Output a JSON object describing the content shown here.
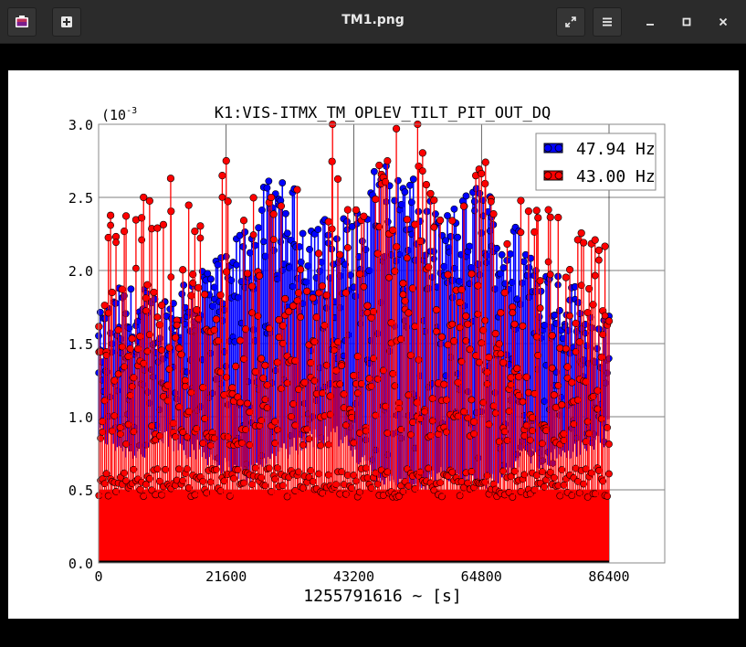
{
  "window": {
    "title": "TM1.png"
  },
  "toolbar": {
    "app_icon": "image-viewer-icon",
    "new_icon": "plus-icon",
    "fullscreen_icon": "fullscreen-icon",
    "menu_icon": "hamburger-menu-icon"
  },
  "window_controls": {
    "minimize_icon": "minimize-icon",
    "maximize_icon": "maximize-icon",
    "close_icon": "close-icon"
  },
  "chart_data": {
    "type": "line",
    "title": "K1:VIS-ITMX_TM_OPLEV_TILT_PIT_OUT_DQ",
    "xlabel": "1255791616 ~ [s]",
    "ylabel": "",
    "y_exponent_label": "(10",
    "y_exponent_power": "-3",
    "xlim": [
      0,
      86400
    ],
    "ylim": [
      0,
      3.0
    ],
    "x_ticks": [
      "0",
      "21600",
      "43200",
      "64800",
      "86400"
    ],
    "y_ticks": [
      "0.0",
      "0.5",
      "1.0",
      "1.5",
      "2.0",
      "2.5",
      "3.0"
    ],
    "grid": true,
    "legend_position": "top-right",
    "colors": {
      "series_1": "#0000ff",
      "series_2": "#ff0000"
    },
    "series": [
      {
        "name": "47.94 Hz",
        "x": [
          0,
          3600,
          7200,
          10800,
          14400,
          18000,
          21600,
          25200,
          28800,
          32400,
          36000,
          39600,
          43200,
          46800,
          50400,
          54000,
          57600,
          61200,
          64800,
          68400,
          72000,
          75600,
          79200,
          82800,
          86400
        ],
        "peak": [
          1.7,
          1.9,
          1.9,
          1.85,
          2.0,
          2.1,
          2.1,
          2.4,
          2.63,
          2.6,
          2.45,
          2.35,
          2.4,
          2.73,
          2.73,
          2.6,
          2.4,
          2.5,
          2.68,
          2.38,
          2.3,
          2.1,
          2.0,
          1.8,
          1.7
        ],
        "low": [
          0.9,
          0.8,
          0.75,
          0.85,
          0.8,
          0.75,
          0.65,
          0.6,
          0.7,
          0.8,
          0.85,
          0.9,
          0.75,
          0.6,
          0.55,
          0.5,
          0.6,
          0.6,
          0.55,
          0.6,
          0.75,
          0.7,
          0.75,
          0.8,
          0.9
        ]
      },
      {
        "name": "43.00 Hz",
        "x": [
          0,
          3600,
          7200,
          10800,
          14400,
          18000,
          21600,
          25200,
          28800,
          32400,
          36000,
          39600,
          43200,
          46800,
          50400,
          54000,
          57600,
          61200,
          64800,
          68400,
          72000,
          75600,
          79200,
          82800,
          86400
        ],
        "peak": [
          2.3,
          2.45,
          2.52,
          2.5,
          2.62,
          2.4,
          2.75,
          2.5,
          2.55,
          2.48,
          2.7,
          3.0,
          2.5,
          2.68,
          2.97,
          3.0,
          2.5,
          2.62,
          2.74,
          2.3,
          2.56,
          2.4,
          2.54,
          2.38,
          2.15
        ],
        "baseline": [
          0.5,
          0.5,
          0.5,
          0.5,
          0.5,
          0.5,
          0.5,
          0.5,
          0.5,
          0.5,
          0.5,
          0.5,
          0.5,
          0.5,
          0.5,
          0.5,
          0.5,
          0.5,
          0.5,
          0.5,
          0.5,
          0.5,
          0.5,
          0.5,
          0.5
        ]
      }
    ]
  }
}
